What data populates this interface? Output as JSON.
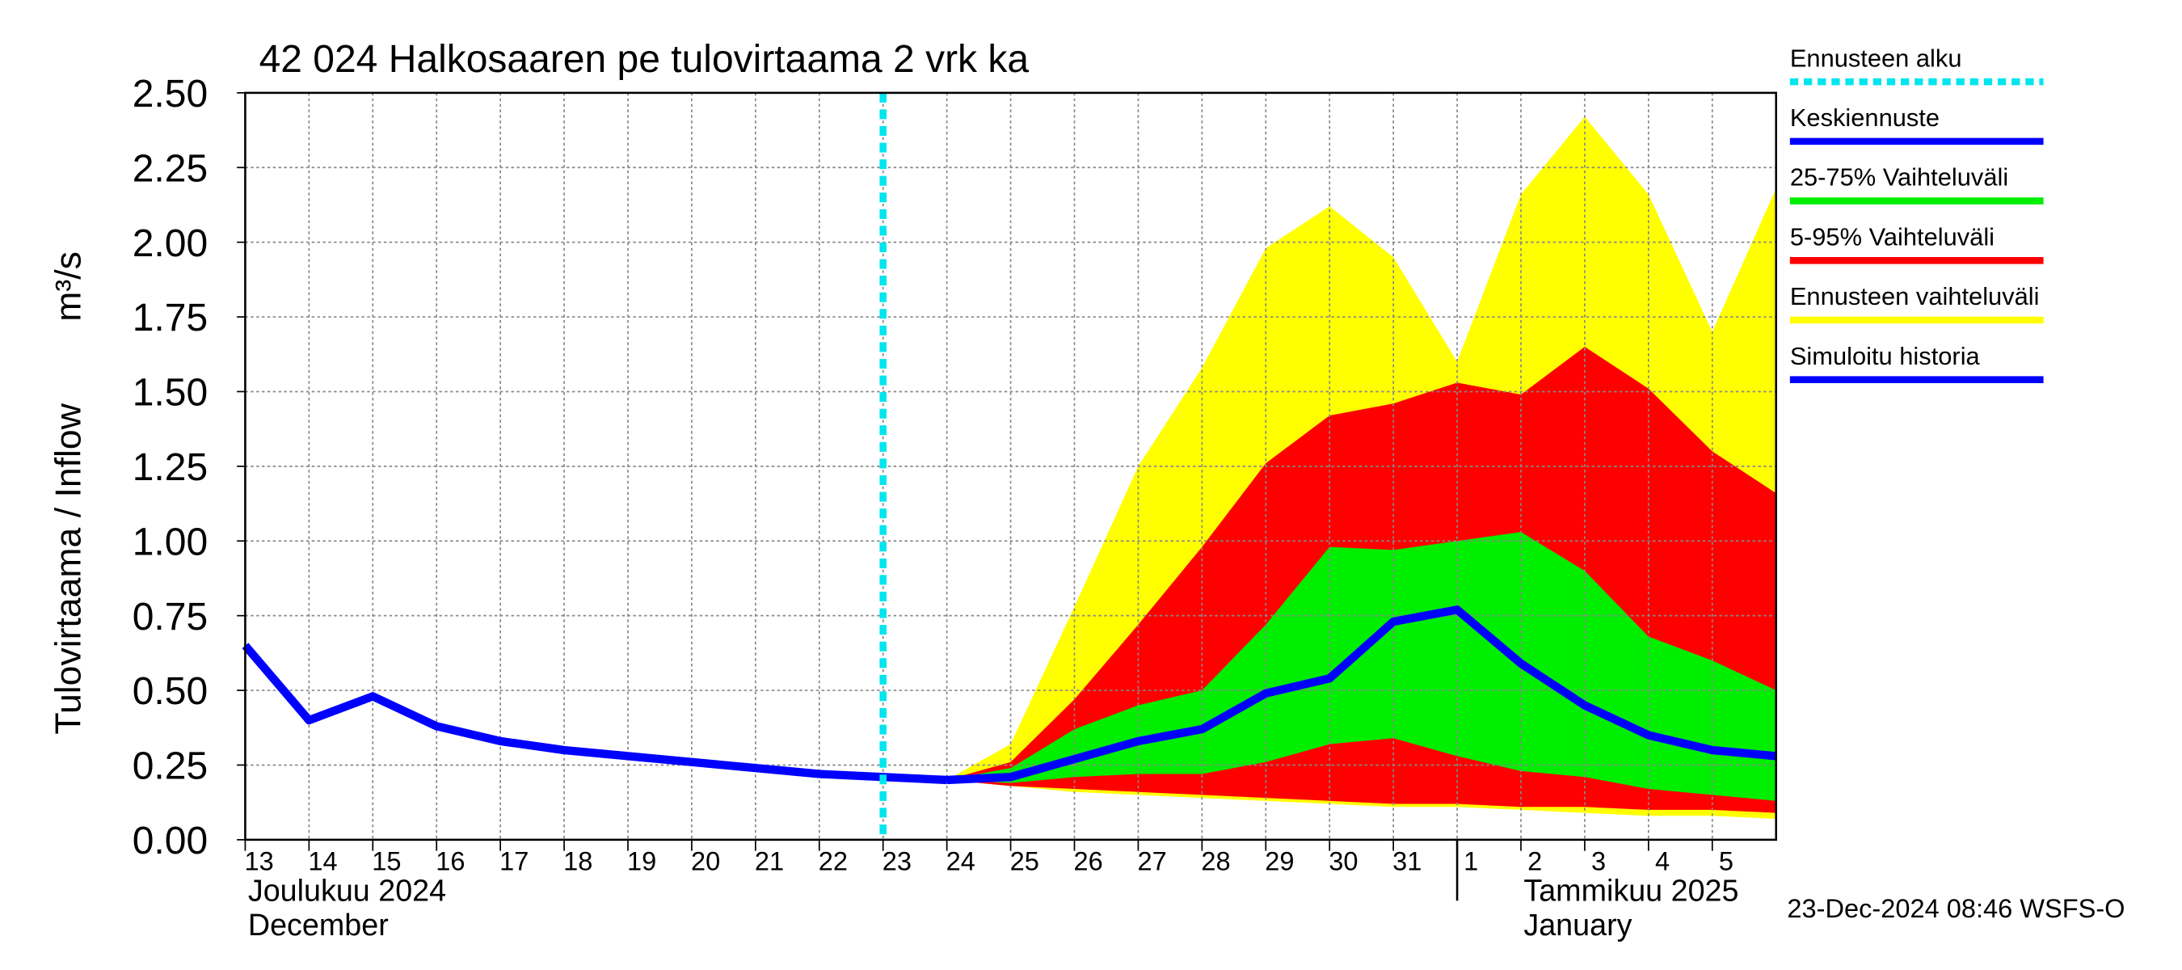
{
  "chart_data": {
    "type": "line",
    "title": "42 024 Halkosaaren pe tulovirtaama 2 vrk ka",
    "y_label": "Tulovirtaama / Inflow",
    "y_unit": "m³/s",
    "month_labels": [
      {
        "x": "2024-12-13",
        "lines": [
          "Joulukuu  2024",
          "December"
        ]
      },
      {
        "x": "2025-01-01",
        "lines": [
          "Tammikuu  2025",
          "January"
        ]
      }
    ],
    "timestamp": "23-Dec-2024 08:46 WSFS-O",
    "forecast_start": {
      "name": "Ennusteen alku",
      "color": "#00e5ee",
      "x": "2024-12-23"
    },
    "x": [
      "2024-12-13",
      "2024-12-14",
      "2024-12-15",
      "2024-12-16",
      "2024-12-17",
      "2024-12-18",
      "2024-12-19",
      "2024-12-20",
      "2024-12-21",
      "2024-12-22",
      "2024-12-23",
      "2024-12-24",
      "2024-12-25",
      "2024-12-26",
      "2024-12-27",
      "2024-12-28",
      "2024-12-29",
      "2024-12-30",
      "2024-12-31",
      "2025-01-01",
      "2025-01-02",
      "2025-01-03",
      "2025-01-04",
      "2025-01-05",
      "2025-01-06"
    ],
    "series": [
      {
        "name": "Keskiennuste",
        "color": "#0000ff",
        "kind": "line",
        "values": [
          null,
          null,
          null,
          null,
          null,
          null,
          null,
          null,
          null,
          null,
          null,
          0.2,
          0.21,
          0.27,
          0.33,
          0.37,
          0.49,
          0.54,
          0.73,
          0.77,
          0.59,
          0.45,
          0.35,
          0.3,
          0.28
        ]
      },
      {
        "name": "25-75% Vaihteluväli",
        "color": "#00ee00",
        "kind": "band",
        "values": [
          null,
          null,
          null,
          null,
          null,
          null,
          null,
          null,
          null,
          null,
          null,
          0.2,
          0.24,
          0.37,
          0.45,
          0.5,
          0.72,
          0.98,
          0.97,
          1.0,
          1.03,
          0.9,
          0.68,
          0.6,
          0.5
        ],
        "low": [
          null,
          null,
          null,
          null,
          null,
          null,
          null,
          null,
          null,
          null,
          null,
          0.2,
          0.19,
          0.21,
          0.22,
          0.22,
          0.26,
          0.32,
          0.34,
          0.28,
          0.23,
          0.21,
          0.17,
          0.15,
          0.13
        ]
      },
      {
        "name": "5-95% Vaihteluväli",
        "color": "#ff0000",
        "kind": "band",
        "values": [
          null,
          null,
          null,
          null,
          null,
          null,
          null,
          null,
          null,
          null,
          null,
          0.2,
          0.26,
          0.47,
          0.72,
          0.98,
          1.26,
          1.42,
          1.46,
          1.53,
          1.49,
          1.65,
          1.51,
          1.3,
          1.16
        ],
        "low": [
          null,
          null,
          null,
          null,
          null,
          null,
          null,
          null,
          null,
          null,
          null,
          0.2,
          0.18,
          0.17,
          0.16,
          0.15,
          0.14,
          0.13,
          0.12,
          0.12,
          0.11,
          0.11,
          0.1,
          0.1,
          0.09
        ]
      },
      {
        "name": "Ennusteen vaihteluväli",
        "color": "#ffff00",
        "kind": "band",
        "values": [
          null,
          null,
          null,
          null,
          null,
          null,
          null,
          null,
          null,
          null,
          null,
          0.2,
          0.32,
          0.78,
          1.25,
          1.58,
          1.98,
          2.12,
          1.95,
          1.6,
          2.16,
          2.42,
          2.16,
          1.7,
          2.18
        ],
        "low": [
          null,
          null,
          null,
          null,
          null,
          null,
          null,
          null,
          null,
          null,
          null,
          0.2,
          0.18,
          0.16,
          0.15,
          0.14,
          0.13,
          0.12,
          0.11,
          0.11,
          0.1,
          0.09,
          0.08,
          0.08,
          0.07
        ]
      },
      {
        "name": "Simuloitu historia",
        "color": "#0000ff",
        "kind": "line",
        "values": [
          0.65,
          0.4,
          0.48,
          0.38,
          0.33,
          0.3,
          0.28,
          0.26,
          0.24,
          0.22,
          0.21,
          0.2,
          null,
          null,
          null,
          null,
          null,
          null,
          null,
          null,
          null,
          null,
          null,
          null,
          null
        ]
      }
    ],
    "xlim": [
      "2024-12-13",
      "2025-01-06"
    ],
    "xticks": [
      {
        "value": "2024-12-13",
        "label": "13"
      },
      {
        "value": "2024-12-14",
        "label": "14"
      },
      {
        "value": "2024-12-15",
        "label": "15"
      },
      {
        "value": "2024-12-16",
        "label": "16"
      },
      {
        "value": "2024-12-17",
        "label": "17"
      },
      {
        "value": "2024-12-18",
        "label": "18"
      },
      {
        "value": "2024-12-19",
        "label": "19"
      },
      {
        "value": "2024-12-20",
        "label": "20"
      },
      {
        "value": "2024-12-21",
        "label": "21"
      },
      {
        "value": "2024-12-22",
        "label": "22"
      },
      {
        "value": "2024-12-23",
        "label": "23"
      },
      {
        "value": "2024-12-24",
        "label": "24"
      },
      {
        "value": "2024-12-25",
        "label": "25"
      },
      {
        "value": "2024-12-26",
        "label": "26"
      },
      {
        "value": "2024-12-27",
        "label": "27"
      },
      {
        "value": "2024-12-28",
        "label": "28"
      },
      {
        "value": "2024-12-29",
        "label": "29"
      },
      {
        "value": "2024-12-30",
        "label": "30"
      },
      {
        "value": "2024-12-31",
        "label": "31"
      },
      {
        "value": "2025-01-01",
        "label": "1"
      },
      {
        "value": "2025-01-02",
        "label": "2"
      },
      {
        "value": "2025-01-03",
        "label": "3"
      },
      {
        "value": "2025-01-04",
        "label": "4"
      },
      {
        "value": "2025-01-05",
        "label": "5"
      }
    ],
    "ylim": [
      0,
      2.5
    ],
    "yticks": [
      {
        "value": 0,
        "label": "0.00"
      },
      {
        "value": 0.25,
        "label": "0.25"
      },
      {
        "value": 0.5,
        "label": "0.50"
      },
      {
        "value": 0.75,
        "label": "0.75"
      },
      {
        "value": 1,
        "label": "1.00"
      },
      {
        "value": 1.25,
        "label": "1.25"
      },
      {
        "value": 1.5,
        "label": "1.50"
      },
      {
        "value": 1.75,
        "label": "1.75"
      },
      {
        "value": 2,
        "label": "2.00"
      },
      {
        "value": 2.25,
        "label": "2.25"
      },
      {
        "value": 2.5,
        "label": "2.50"
      }
    ],
    "grid": true
  }
}
